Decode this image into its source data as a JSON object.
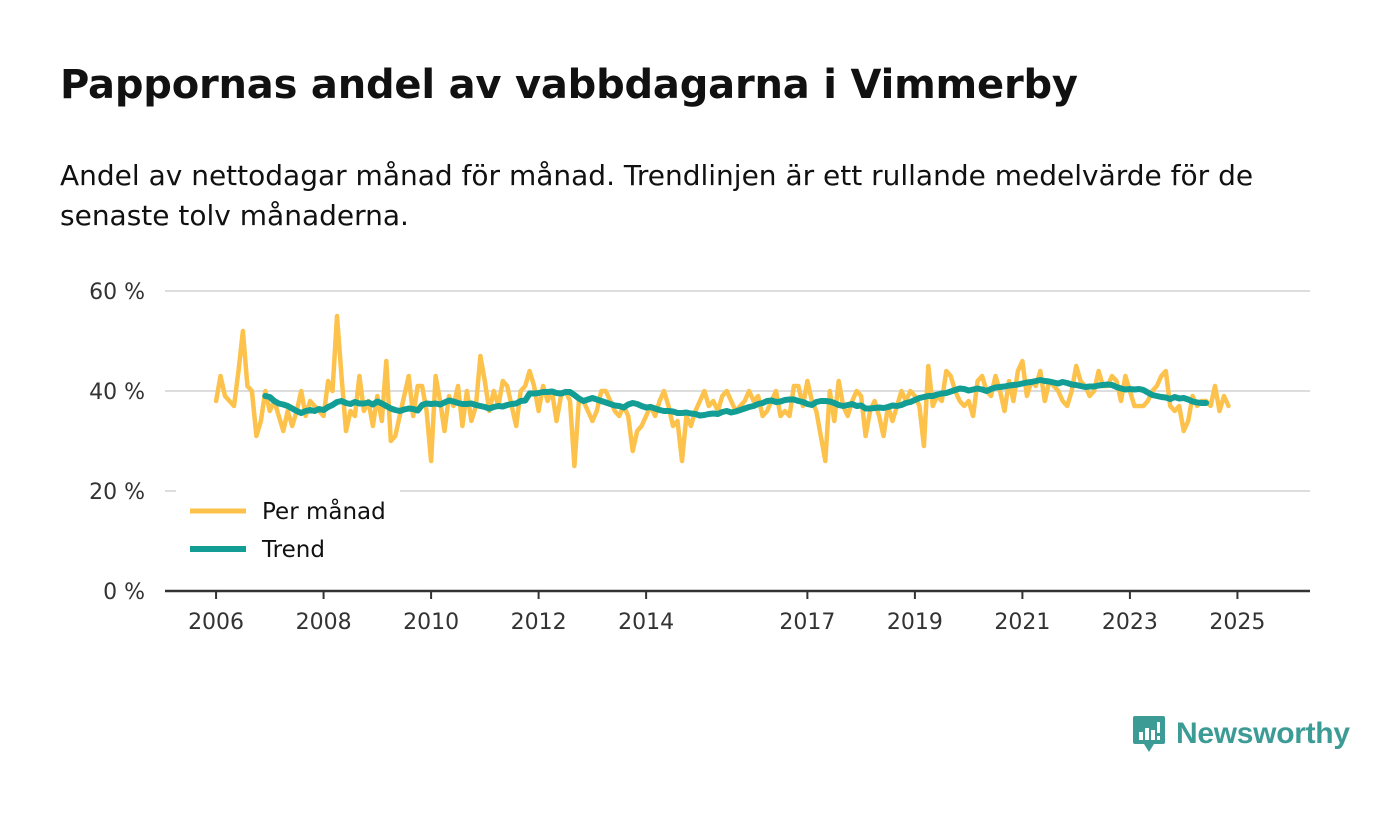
{
  "title": "Pappornas andel av vabbdagarna i Vimmerby",
  "subtitle": "Andel av nettodagar månad för månad. Trendlinjen är ett rullande medelvärde för de senaste tolv månaderna.",
  "brand": {
    "name": "Newsworthy",
    "icon": "newsworthy-logo-icon",
    "color": "#3d9b95"
  },
  "colors": {
    "monthly": "#fcc24b",
    "trend": "#129e94",
    "grid": "#dddddd",
    "axis": "#333333"
  },
  "chart_data": {
    "type": "line",
    "x_start": "2006-01",
    "x_unit": "month",
    "xticks": [
      2006,
      2008,
      2010,
      2012,
      2014,
      2017,
      2019,
      2021,
      2023,
      2025
    ],
    "xtick_labels": [
      "2006",
      "2008",
      "2010",
      "2012",
      "2014",
      "2017",
      "2019",
      "2021",
      "2023",
      "2025"
    ],
    "yticks": [
      0,
      20,
      40,
      60
    ],
    "ytick_labels": [
      "0 %",
      "20 %",
      "40 %",
      "60 %"
    ],
    "ylim": [
      0,
      60
    ],
    "xlim": [
      2005.05,
      2026.35
    ],
    "grid": true,
    "legend": "bottom-left",
    "series": [
      {
        "name": "Per månad",
        "values": [
          38,
          43,
          39,
          38,
          37,
          44,
          52,
          41,
          40,
          31,
          34,
          40,
          36,
          38,
          35,
          32,
          36,
          33,
          36,
          40,
          35,
          38,
          37,
          36,
          35,
          42,
          40,
          55,
          43,
          32,
          36,
          35,
          43,
          36,
          38,
          33,
          39,
          34,
          46,
          30,
          31,
          35,
          39,
          43,
          35,
          41,
          41,
          36,
          26,
          43,
          38,
          32,
          39,
          37,
          41,
          33,
          40,
          34,
          37,
          47,
          42,
          36,
          40,
          37,
          42,
          41,
          37,
          33,
          40,
          41,
          44,
          41,
          36,
          41,
          38,
          40,
          34,
          39,
          40,
          38,
          25,
          38,
          38,
          36,
          34,
          36,
          40,
          40,
          38,
          36,
          35,
          37,
          35,
          28,
          32,
          33,
          35,
          37,
          35,
          38,
          40,
          37,
          33,
          34,
          26,
          35,
          33,
          36,
          38,
          40,
          37,
          38,
          36,
          39,
          40,
          38,
          36,
          37,
          38,
          40,
          38,
          39,
          35,
          36,
          38,
          40,
          35,
          36,
          35,
          41,
          41,
          37,
          42,
          38,
          36,
          31,
          26,
          40,
          34,
          42,
          37,
          35,
          38,
          40,
          39,
          31,
          36,
          38,
          35,
          31,
          37,
          34,
          37,
          40,
          38,
          40,
          39,
          37,
          29,
          45,
          37,
          39,
          38,
          44,
          43,
          40,
          38,
          37,
          38,
          35,
          42,
          43,
          40,
          39,
          43,
          40,
          36,
          42,
          38,
          44,
          46,
          39,
          42,
          41,
          44,
          38,
          42,
          41,
          40,
          38,
          37,
          40,
          45,
          42,
          41,
          39,
          40,
          44,
          41,
          41,
          43,
          42,
          38,
          43,
          40,
          37,
          37,
          37,
          38,
          40,
          41,
          43,
          44,
          37,
          36,
          37,
          32,
          34,
          39,
          37,
          38,
          38,
          37,
          41,
          36,
          39,
          37
        ]
      },
      {
        "name": "Trend",
        "start_index": 11,
        "values": [
          39,
          38.8,
          38,
          37.5,
          37.3,
          37,
          36.5,
          36,
          35.6,
          36,
          36.2,
          36,
          36.4,
          36.2,
          36.8,
          37.2,
          37.8,
          38,
          37.6,
          37.4,
          37.8,
          37.5,
          37.5,
          37.7,
          37.3,
          37.9,
          37.5,
          37,
          36.5,
          36.2,
          36,
          36.3,
          36.5,
          36.4,
          36.1,
          37.2,
          37.5,
          37.4,
          37.5,
          37.3,
          37.7,
          38.1,
          37.9,
          37.6,
          37.4,
          37.4,
          37.5,
          37.2,
          37,
          36.8,
          36.5,
          36.8,
          37,
          36.9,
          37.2,
          37.4,
          37.5,
          38,
          38.1,
          39.5,
          39.5,
          39.6,
          39.8,
          39.8,
          39.9,
          39.6,
          39.5,
          39.8,
          39.8,
          39.2,
          38.5,
          38,
          38.3,
          38.6,
          38.3,
          38,
          37.7,
          37.4,
          37.1,
          37,
          36.7,
          37.3,
          37.6,
          37.4,
          37,
          36.7,
          36.8,
          36.5,
          36.2,
          36,
          36,
          35.9,
          35.6,
          35.6,
          35.7,
          35.5,
          35.4,
          35.1,
          35.2,
          35.4,
          35.5,
          35.4,
          35.8,
          36,
          35.7,
          35.9,
          36.2,
          36.5,
          36.8,
          37,
          37.4,
          37.6,
          38,
          38.1,
          37.8,
          37.9,
          38.2,
          38.3,
          38.3,
          38,
          37.8,
          37.4,
          37.2,
          37.8,
          38,
          38,
          37.9,
          37.6,
          37.2,
          37,
          37.2,
          37.4,
          37,
          37.1,
          36.5,
          36.5,
          36.6,
          36.7,
          36.6,
          36.8,
          37.1,
          37,
          37.2,
          37.6,
          37.8,
          38.2,
          38.6,
          38.8,
          39,
          39,
          39.3,
          39.5,
          39.6,
          39.9,
          40.2,
          40.5,
          40.4,
          40.1,
          40.3,
          40.5,
          40.3,
          40,
          40.4,
          40.7,
          40.8,
          40.9,
          41.1,
          41.2,
          41.3,
          41.5,
          41.7,
          41.8,
          42,
          42.2,
          42,
          41.9,
          41.7,
          41.5,
          41.8,
          41.6,
          41.3,
          41.2,
          41,
          40.8,
          40.9,
          40.9,
          41.1,
          41.2,
          41.3,
          41.2,
          40.8,
          40.5,
          40.3,
          40.4,
          40.3,
          40.4,
          40.2,
          39.7,
          39.2,
          39,
          38.8,
          38.7,
          38.4,
          38.8,
          38.5,
          38.6,
          38.3,
          37.9,
          37.7,
          37.6,
          37.6
        ]
      }
    ]
  }
}
